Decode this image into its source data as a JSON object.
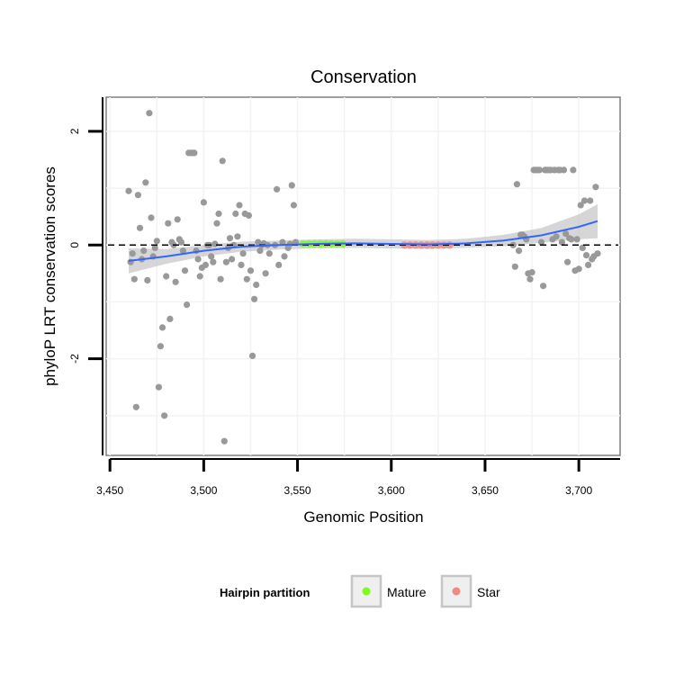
{
  "chart_data": {
    "type": "scatter",
    "title": "Conservation",
    "xlabel": "Genomic Position",
    "ylabel": "phyloP LRT conservation scores",
    "xlim": [
      3448,
      3722
    ],
    "ylim": [
      -3.7,
      2.6
    ],
    "x_ticks": [
      3450,
      3500,
      3550,
      3600,
      3650,
      3700
    ],
    "x_tick_labels": [
      "3,450",
      "3,500",
      "3,550",
      "3,600",
      "3,650",
      "3,700"
    ],
    "y_ticks": [
      2,
      0,
      -2
    ],
    "y_tick_labels": [
      "2",
      "0",
      "-2"
    ],
    "reference_line": {
      "y": 0,
      "style": "dashed"
    },
    "grid": true,
    "legend": {
      "title": "Hairpin partition",
      "position": "bottom",
      "entries": [
        {
          "label": "Mature",
          "color": "#7CFC1C"
        },
        {
          "label": "Star",
          "color": "#F08A80"
        }
      ]
    },
    "colors": {
      "points": "#999999",
      "smooth_line": "#3366FF",
      "ribbon": "#BBBBBB",
      "mature": "#7CFC1C",
      "star": "#F08A80"
    },
    "series": [
      {
        "name": "scores",
        "points": [
          {
            "x": 3460,
            "y": 0.95
          },
          {
            "x": 3461,
            "y": -0.3
          },
          {
            "x": 3462,
            "y": -0.15
          },
          {
            "x": 3463,
            "y": -0.6
          },
          {
            "x": 3464,
            "y": -2.85
          },
          {
            "x": 3465,
            "y": 0.88
          },
          {
            "x": 3466,
            "y": 0.3
          },
          {
            "x": 3467,
            "y": -0.25
          },
          {
            "x": 3468,
            "y": -0.1
          },
          {
            "x": 3469,
            "y": 1.1
          },
          {
            "x": 3470,
            "y": -0.62
          },
          {
            "x": 3471,
            "y": 2.32
          },
          {
            "x": 3472,
            "y": 0.48
          },
          {
            "x": 3473,
            "y": -0.2
          },
          {
            "x": 3474,
            "y": -0.05
          },
          {
            "x": 3475,
            "y": 0.07
          },
          {
            "x": 3476,
            "y": -2.5
          },
          {
            "x": 3477,
            "y": -1.78
          },
          {
            "x": 3478,
            "y": -1.45
          },
          {
            "x": 3479,
            "y": -3.0
          },
          {
            "x": 3480,
            "y": -0.55
          },
          {
            "x": 3481,
            "y": 0.38
          },
          {
            "x": 3482,
            "y": -1.3
          },
          {
            "x": 3483,
            "y": 0.05
          },
          {
            "x": 3484,
            "y": 0.0
          },
          {
            "x": 3485,
            "y": -0.65
          },
          {
            "x": 3486,
            "y": 0.45
          },
          {
            "x": 3487,
            "y": 0.1
          },
          {
            "x": 3488,
            "y": 0.05
          },
          {
            "x": 3489,
            "y": -0.1
          },
          {
            "x": 3490,
            "y": -0.45
          },
          {
            "x": 3491,
            "y": -1.05
          },
          {
            "x": 3492,
            "y": 1.62
          },
          {
            "x": 3493,
            "y": 1.62
          },
          {
            "x": 3494,
            "y": 1.62
          },
          {
            "x": 3495,
            "y": 1.62
          },
          {
            "x": 3496,
            "y": -0.1
          },
          {
            "x": 3497,
            "y": -0.25
          },
          {
            "x": 3498,
            "y": -0.55
          },
          {
            "x": 3499,
            "y": -0.4
          },
          {
            "x": 3500,
            "y": 0.75
          },
          {
            "x": 3501,
            "y": -0.35
          },
          {
            "x": 3502,
            "y": 0.0
          },
          {
            "x": 3503,
            "y": 0.0
          },
          {
            "x": 3504,
            "y": -0.2
          },
          {
            "x": 3505,
            "y": -0.3
          },
          {
            "x": 3506,
            "y": 0.02
          },
          {
            "x": 3507,
            "y": 0.38
          },
          {
            "x": 3508,
            "y": 0.55
          },
          {
            "x": 3509,
            "y": -0.6
          },
          {
            "x": 3510,
            "y": 1.48
          },
          {
            "x": 3511,
            "y": -3.45
          },
          {
            "x": 3512,
            "y": -0.3
          },
          {
            "x": 3513,
            "y": -0.05
          },
          {
            "x": 3514,
            "y": 0.12
          },
          {
            "x": 3515,
            "y": -0.25
          },
          {
            "x": 3516,
            "y": 0.0
          },
          {
            "x": 3517,
            "y": 0.55
          },
          {
            "x": 3518,
            "y": 0.15
          },
          {
            "x": 3519,
            "y": 0.7
          },
          {
            "x": 3520,
            "y": -0.35
          },
          {
            "x": 3521,
            "y": -0.15
          },
          {
            "x": 3522,
            "y": 0.55
          },
          {
            "x": 3523,
            "y": -0.6
          },
          {
            "x": 3524,
            "y": 0.52
          },
          {
            "x": 3525,
            "y": -0.45
          },
          {
            "x": 3526,
            "y": -1.95
          },
          {
            "x": 3527,
            "y": -0.95
          },
          {
            "x": 3528,
            "y": -0.7
          },
          {
            "x": 3529,
            "y": 0.05
          },
          {
            "x": 3530,
            "y": -0.1
          },
          {
            "x": 3531,
            "y": 0.0
          },
          {
            "x": 3532,
            "y": 0.03
          },
          {
            "x": 3533,
            "y": -0.5
          },
          {
            "x": 3534,
            "y": 0.0
          },
          {
            "x": 3535,
            "y": -0.15
          },
          {
            "x": 3538,
            "y": 0.0
          },
          {
            "x": 3539,
            "y": 0.98
          },
          {
            "x": 3540,
            "y": -0.35
          },
          {
            "x": 3542,
            "y": 0.05
          },
          {
            "x": 3543,
            "y": -0.2
          },
          {
            "x": 3545,
            "y": -0.05
          },
          {
            "x": 3546,
            "y": 0.02
          },
          {
            "x": 3547,
            "y": 1.05
          },
          {
            "x": 3548,
            "y": 0.7
          },
          {
            "x": 3549,
            "y": 0.05
          },
          {
            "x": 3665,
            "y": 0.0
          },
          {
            "x": 3666,
            "y": -0.38
          },
          {
            "x": 3667,
            "y": 1.07
          },
          {
            "x": 3668,
            "y": -0.1
          },
          {
            "x": 3669,
            "y": 0.18
          },
          {
            "x": 3670,
            "y": 0.18
          },
          {
            "x": 3671,
            "y": 0.15
          },
          {
            "x": 3672,
            "y": 0.1
          },
          {
            "x": 3673,
            "y": -0.5
          },
          {
            "x": 3674,
            "y": -0.6
          },
          {
            "x": 3675,
            "y": -0.48
          },
          {
            "x": 3676,
            "y": 1.32
          },
          {
            "x": 3677,
            "y": 1.32
          },
          {
            "x": 3678,
            "y": 1.32
          },
          {
            "x": 3679,
            "y": 1.32
          },
          {
            "x": 3680,
            "y": 0.05
          },
          {
            "x": 3681,
            "y": -0.72
          },
          {
            "x": 3682,
            "y": 1.32
          },
          {
            "x": 3683,
            "y": 1.32
          },
          {
            "x": 3684,
            "y": 1.32
          },
          {
            "x": 3685,
            "y": 1.32
          },
          {
            "x": 3686,
            "y": 0.1
          },
          {
            "x": 3687,
            "y": 1.32
          },
          {
            "x": 3688,
            "y": 0.15
          },
          {
            "x": 3689,
            "y": 1.32
          },
          {
            "x": 3690,
            "y": 1.32
          },
          {
            "x": 3691,
            "y": 0.05
          },
          {
            "x": 3692,
            "y": 1.32
          },
          {
            "x": 3693,
            "y": 0.2
          },
          {
            "x": 3694,
            "y": -0.3
          },
          {
            "x": 3695,
            "y": 0.12
          },
          {
            "x": 3696,
            "y": 0.1
          },
          {
            "x": 3697,
            "y": 1.32
          },
          {
            "x": 3698,
            "y": -0.45
          },
          {
            "x": 3699,
            "y": 0.1
          },
          {
            "x": 3700,
            "y": -0.42
          },
          {
            "x": 3701,
            "y": 0.7
          },
          {
            "x": 3702,
            "y": -0.05
          },
          {
            "x": 3703,
            "y": 0.78
          },
          {
            "x": 3704,
            "y": -0.18
          },
          {
            "x": 3705,
            "y": -0.35
          },
          {
            "x": 3706,
            "y": 0.78
          },
          {
            "x": 3707,
            "y": -0.25
          },
          {
            "x": 3708,
            "y": -0.2
          },
          {
            "x": 3709,
            "y": 1.02
          },
          {
            "x": 3710,
            "y": -0.15
          }
        ]
      },
      {
        "name": "Mature",
        "points": [
          {
            "x": 3553,
            "y": 0.02
          },
          {
            "x": 3556,
            "y": 0.02
          },
          {
            "x": 3559,
            "y": 0.02
          },
          {
            "x": 3562,
            "y": 0.02
          },
          {
            "x": 3565,
            "y": 0.02
          },
          {
            "x": 3568,
            "y": 0.02
          },
          {
            "x": 3571,
            "y": 0.02
          },
          {
            "x": 3574,
            "y": 0.02
          }
        ]
      },
      {
        "name": "Star",
        "points": [
          {
            "x": 3607,
            "y": 0.0
          },
          {
            "x": 3610,
            "y": 0.0
          },
          {
            "x": 3613,
            "y": 0.0
          },
          {
            "x": 3616,
            "y": 0.0
          },
          {
            "x": 3619,
            "y": 0.0
          },
          {
            "x": 3622,
            "y": 0.0
          },
          {
            "x": 3625,
            "y": 0.0
          },
          {
            "x": 3628,
            "y": 0.0
          },
          {
            "x": 3631,
            "y": 0.0
          }
        ]
      },
      {
        "name": "smooth",
        "points": [
          {
            "x": 3460,
            "y": -0.28,
            "lo": -0.5,
            "hi": -0.06
          },
          {
            "x": 3480,
            "y": -0.2,
            "lo": -0.33,
            "hi": -0.07
          },
          {
            "x": 3500,
            "y": -0.1,
            "lo": -0.2,
            "hi": 0.0
          },
          {
            "x": 3520,
            "y": -0.03,
            "lo": -0.12,
            "hi": 0.06
          },
          {
            "x": 3540,
            "y": 0.0,
            "lo": -0.08,
            "hi": 0.08
          },
          {
            "x": 3560,
            "y": 0.02,
            "lo": -0.06,
            "hi": 0.1
          },
          {
            "x": 3580,
            "y": 0.03,
            "lo": -0.05,
            "hi": 0.11
          },
          {
            "x": 3600,
            "y": 0.02,
            "lo": -0.06,
            "hi": 0.1
          },
          {
            "x": 3620,
            "y": 0.01,
            "lo": -0.07,
            "hi": 0.09
          },
          {
            "x": 3640,
            "y": 0.03,
            "lo": -0.05,
            "hi": 0.11
          },
          {
            "x": 3660,
            "y": 0.08,
            "lo": -0.02,
            "hi": 0.18
          },
          {
            "x": 3680,
            "y": 0.17,
            "lo": 0.04,
            "hi": 0.3
          },
          {
            "x": 3700,
            "y": 0.32,
            "lo": 0.1,
            "hi": 0.54
          },
          {
            "x": 3710,
            "y": 0.42,
            "lo": 0.12,
            "hi": 0.72
          }
        ]
      }
    ]
  }
}
